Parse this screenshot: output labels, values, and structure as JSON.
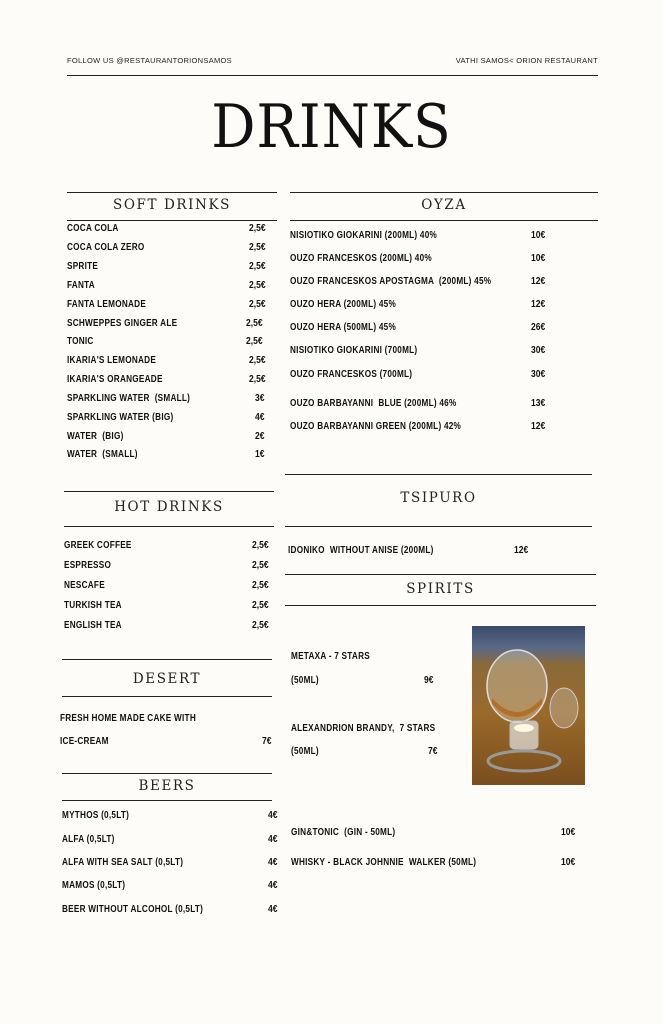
{
  "header": {
    "follow": "FOLLOW US @RESTAURANTORIONSAMOS",
    "location": "VATHI SAMOS< ORION RESTAURANT"
  },
  "title": "DRINKS",
  "sections": {
    "soft": {
      "title": "SOFT DRINKS",
      "items": [
        {
          "name": "COCA COLA",
          "price": "2,5€"
        },
        {
          "name": "COCA COLA ZERO",
          "price": "2,5€"
        },
        {
          "name": "SPRITE",
          "price": "2,5€"
        },
        {
          "name": "FANTA",
          "price": "2,5€"
        },
        {
          "name": "FANTA LEMONADE",
          "price": "2,5€"
        },
        {
          "name": "SCHWEPPES GINGER ALE",
          "price": "2,5€"
        },
        {
          "name": "TONIC",
          "price": "2,5€"
        },
        {
          "name": "IKARIA'S LEMONADE",
          "price": "2,5€"
        },
        {
          "name": "IKARIA'S ORANGEADE",
          "price": "2,5€"
        },
        {
          "name": "SPARKLING WATER  (SMALL)",
          "price": "3€"
        },
        {
          "name": "SPARKLING WATER (BIG)",
          "price": "4€"
        },
        {
          "name": "WATER  (BIG)",
          "price": "2€"
        },
        {
          "name": "WATER  (SMALL)",
          "price": "1€"
        }
      ]
    },
    "hot": {
      "title": "HOT DRINKS",
      "items": [
        {
          "name": "GREEK COFFEE",
          "price": "2,5€"
        },
        {
          "name": "ESPRESSO",
          "price": "2,5€"
        },
        {
          "name": "NESCAFE",
          "price": "2,5€"
        },
        {
          "name": "TURKISH TEA",
          "price": "2,5€"
        },
        {
          "name": "ENGLISH TEA",
          "price": "2,5€"
        }
      ]
    },
    "desert": {
      "title": "DESERT",
      "items": [
        {
          "name": "FRESH HOME MADE CAKE WITH",
          "price": ""
        },
        {
          "name": "ICE-CREAM",
          "price": "7€"
        }
      ]
    },
    "beers": {
      "title": "BEERS",
      "items": [
        {
          "name": "MYTHOS (0,5LT)",
          "price": "4€"
        },
        {
          "name": "ALFA (0,5LT)",
          "price": "4€"
        },
        {
          "name": "ALFA WITH SEA SALT (0,5LT)",
          "price": "4€"
        },
        {
          "name": "MAMOS (0,5LT)",
          "price": "4€"
        },
        {
          "name": "BEER WITHOUT ALCOHOL (0,5LT)",
          "price": "4€"
        }
      ]
    },
    "oyza": {
      "title": "OYZA",
      "items": [
        {
          "name": "NISIOTIKO GIOKARINI (200ML) 40%",
          "price": "10€"
        },
        {
          "name": "OUZO FRANCESKOS (200ML) 40%",
          "price": "10€"
        },
        {
          "name": "OUZO FRANCESKOS APOSTAGMA  (200ML) 45%",
          "price": "12€"
        },
        {
          "name": "OUZO HERA (200ML) 45%",
          "price": "12€"
        },
        {
          "name": "OUZO HERA (500ML) 45%",
          "price": "26€"
        },
        {
          "name": "NISIOTIKO GIOKARINI (700ML)",
          "price": "30€"
        },
        {
          "name": "OUZO FRANCESKOS (700ML)",
          "price": "30€"
        },
        {
          "name": "OUZO BARBAYANNI  BLUE (200ML) 46%",
          "price": "13€"
        },
        {
          "name": "OUZO BARBAYANNI GREEN (200ML) 42%",
          "price": "12€"
        }
      ]
    },
    "tsipuro": {
      "title": "TSIPURO",
      "items": [
        {
          "name": "IDONIKO  WITHOUT ANISE (200ML)",
          "price": "12€"
        }
      ]
    },
    "spirits": {
      "title": "SPIRITS",
      "items": [
        {
          "name": "METAXA - 7 STARS",
          "price": ""
        },
        {
          "name": "(50ML)",
          "price": "9€"
        },
        {
          "name": "ALEXANDRION BRANDY,  7 STARS",
          "price": ""
        },
        {
          "name": "(50ML)",
          "price": "7€"
        },
        {
          "name": "GIN&TONIC  (GIN - 50ML)",
          "price": "10€"
        },
        {
          "name": "WHISKY - BLACK JOHNNIE  WALKER (50ML)",
          "price": "10€"
        }
      ]
    }
  },
  "photo_icon": "brandy-warmer-photo"
}
